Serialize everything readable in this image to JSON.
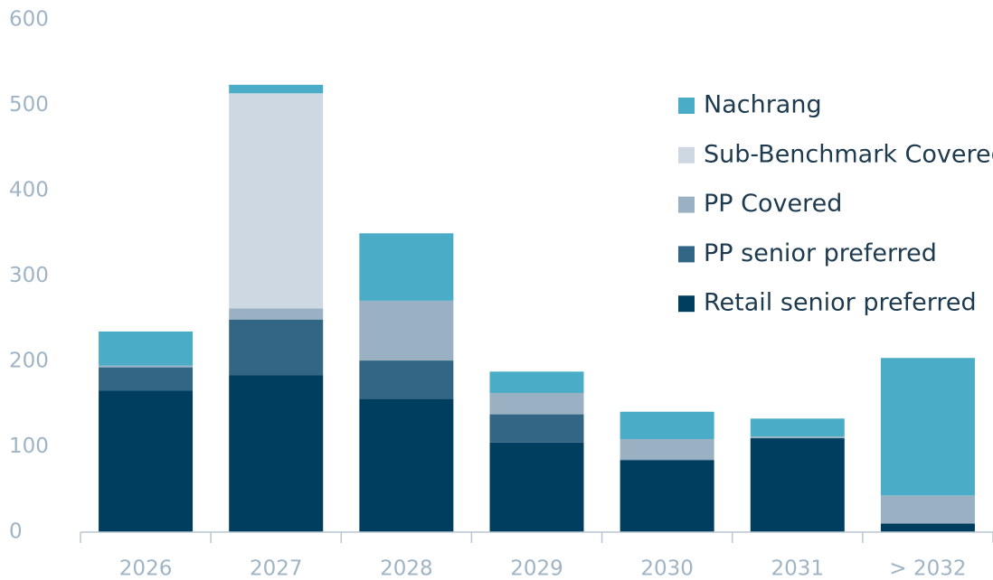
{
  "chart_data": {
    "type": "stacked_bar",
    "categories": [
      "2026",
      "2027",
      "2028",
      "2029",
      "2030",
      "2031",
      "> 2032"
    ],
    "series": [
      {
        "name": "Retail senior preferred",
        "color": "#003e5f",
        "values": [
          166,
          184,
          156,
          105,
          84,
          110,
          10
        ]
      },
      {
        "name": "PP senior preferred",
        "color": "#336684",
        "values": [
          27,
          65,
          45,
          33,
          1,
          0,
          0
        ]
      },
      {
        "name": "PP Covered",
        "color": "#99b1c2",
        "values": [
          2,
          13,
          70,
          25,
          24,
          2,
          33
        ]
      },
      {
        "name": "Sub-Benchmark Covered",
        "color": "#cdd8e3",
        "values": [
          0,
          252,
          0,
          0,
          0,
          0,
          0
        ]
      },
      {
        "name": "Nachrang",
        "color": "#4aacc6",
        "values": [
          40,
          10,
          79,
          25,
          32,
          21,
          161
        ]
      }
    ],
    "ylim": [
      0,
      600
    ],
    "yticks": [
      0,
      100,
      200,
      300,
      400,
      500,
      600
    ],
    "legend": "upper right"
  }
}
